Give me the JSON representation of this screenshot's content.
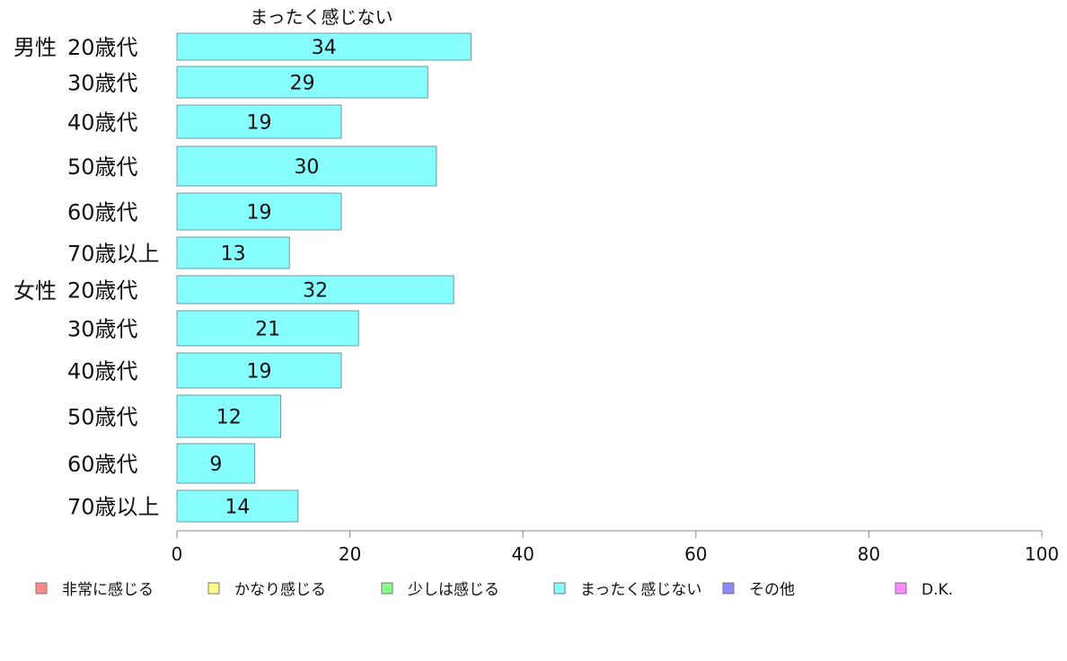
{
  "chart_data": {
    "type": "bar",
    "orientation": "horizontal",
    "title": "まったく感じない",
    "group_labels": [
      "男性",
      "女性"
    ],
    "categories": [
      "20歳代",
      "30歳代",
      "40歳代",
      "50歳代",
      "60歳代",
      "70歳以上",
      "20歳代",
      "30歳代",
      "40歳代",
      "50歳代",
      "60歳代",
      "70歳以上"
    ],
    "series": [
      {
        "name": "まったく感じない",
        "color": "#88ffff",
        "values": [
          34,
          29,
          19,
          30,
          19,
          13,
          32,
          21,
          19,
          12,
          9,
          14
        ]
      }
    ],
    "xlim": [
      0,
      100
    ],
    "xticks": [
      0,
      20,
      40,
      60,
      80,
      100
    ],
    "grid": false,
    "legend_position": "bottom",
    "legend": [
      {
        "label": "非常に感じる",
        "color": "#ff8888"
      },
      {
        "label": "かなり感じる",
        "color": "#ffff88"
      },
      {
        "label": "少しは感じる",
        "color": "#88ff88"
      },
      {
        "label": "まったく感じない",
        "color": "#88ffff"
      },
      {
        "label": "その他",
        "color": "#8888ff"
      },
      {
        "label": "D.K.",
        "color": "#ff88ff"
      }
    ]
  }
}
